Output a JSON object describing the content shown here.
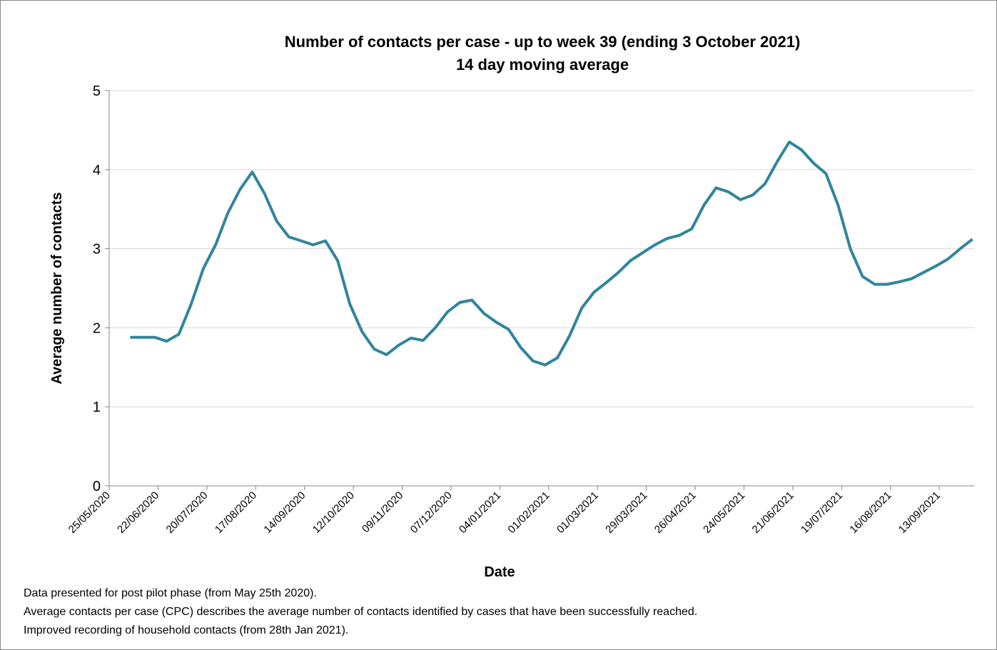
{
  "chart_data": {
    "type": "line",
    "title": "Number of contacts per case - up to week 39 (ending 3 October 2021)",
    "subtitle": "14 day moving average",
    "x_label": "Date",
    "y_label": "Average number of contacts",
    "x": [
      "06/06/2020",
      "13/06/2020",
      "20/06/2020",
      "27/06/2020",
      "04/07/2020",
      "11/07/2020",
      "18/07/2020",
      "25/07/2020",
      "01/08/2020",
      "08/08/2020",
      "15/08/2020",
      "22/08/2020",
      "29/08/2020",
      "05/09/2020",
      "12/09/2020",
      "19/09/2020",
      "26/09/2020",
      "03/10/2020",
      "10/10/2020",
      "17/10/2020",
      "24/10/2020",
      "31/10/2020",
      "07/11/2020",
      "14/11/2020",
      "21/11/2020",
      "28/11/2020",
      "05/12/2020",
      "12/12/2020",
      "19/12/2020",
      "26/12/2020",
      "02/01/2021",
      "09/01/2021",
      "16/01/2021",
      "23/01/2021",
      "30/01/2021",
      "06/02/2021",
      "13/02/2021",
      "20/02/2021",
      "27/02/2021",
      "06/03/2021",
      "13/03/2021",
      "20/03/2021",
      "27/03/2021",
      "03/04/2021",
      "10/04/2021",
      "17/04/2021",
      "24/04/2021",
      "01/05/2021",
      "08/05/2021",
      "15/05/2021",
      "22/05/2021",
      "29/05/2021",
      "05/06/2021",
      "12/06/2021",
      "19/06/2021",
      "26/06/2021",
      "03/07/2021",
      "10/07/2021",
      "17/07/2021",
      "24/07/2021",
      "31/07/2021",
      "07/08/2021",
      "14/08/2021",
      "21/08/2021",
      "28/08/2021",
      "04/09/2021",
      "11/09/2021",
      "18/09/2021",
      "25/09/2021",
      "02/10/2021"
    ],
    "series": [
      {
        "name": "Average number of contacts",
        "color": "#31859c",
        "values": [
          1.88,
          1.88,
          1.88,
          1.83,
          1.92,
          2.3,
          2.75,
          3.05,
          3.45,
          3.75,
          3.97,
          3.7,
          3.35,
          3.15,
          3.1,
          3.05,
          3.1,
          2.85,
          2.3,
          1.95,
          1.73,
          1.66,
          1.78,
          1.87,
          1.84,
          2.0,
          2.2,
          2.32,
          2.35,
          2.18,
          2.07,
          1.98,
          1.75,
          1.58,
          1.53,
          1.62,
          1.9,
          2.25,
          2.45,
          2.57,
          2.7,
          2.85,
          2.95,
          3.05,
          3.13,
          3.17,
          3.25,
          3.55,
          3.77,
          3.72,
          3.62,
          3.68,
          3.82,
          4.1,
          4.35,
          4.25,
          4.08,
          3.95,
          3.55,
          3.0,
          2.65,
          2.55,
          2.55,
          2.58,
          2.62,
          2.7,
          2.78,
          2.87,
          3.0,
          3.12
        ]
      }
    ],
    "xlim": [
      "25/05/2020",
      "03/10/2021"
    ],
    "xticks": [
      "25/05/2020",
      "22/06/2020",
      "20/07/2020",
      "17/08/2020",
      "14/09/2020",
      "12/10/2020",
      "09/11/2020",
      "07/12/2020",
      "04/01/2021",
      "01/02/2021",
      "01/03/2021",
      "29/03/2021",
      "26/04/2021",
      "24/05/2021",
      "21/06/2021",
      "19/07/2021",
      "16/08/2021",
      "13/09/2021"
    ],
    "ylim": [
      0,
      5
    ],
    "yticks": [
      0,
      1,
      2,
      3,
      4,
      5
    ],
    "grid": true,
    "notes": [
      "Data presented  for post pilot phase (from May 25th 2020).",
      "Average contacts per case (CPC) describes the average number of contacts identified by cases that have been successfully reached.",
      "Improved recording of household contacts (from 28th Jan 2021)."
    ]
  }
}
